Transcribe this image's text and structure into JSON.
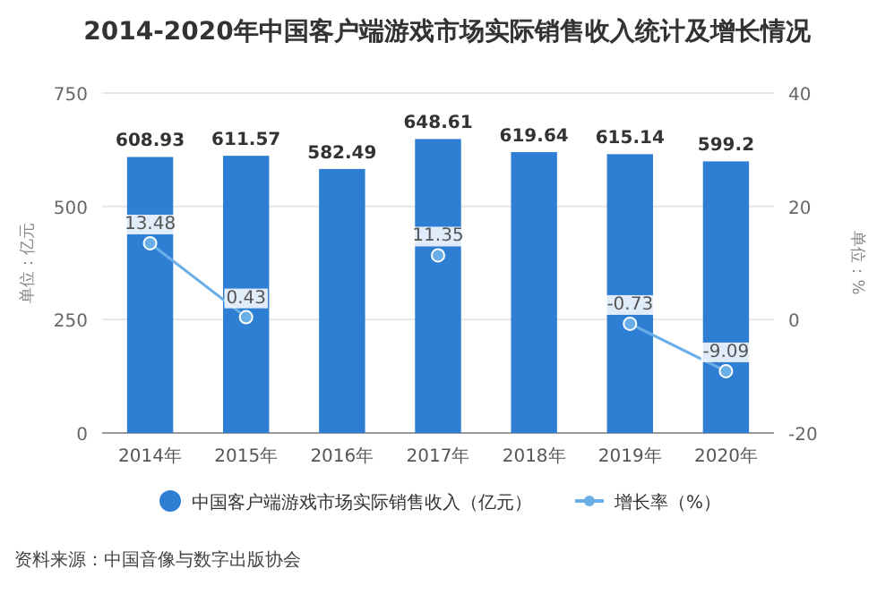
{
  "chart_data": {
    "type": "bar",
    "title": "2014-2020年中国客户端游戏市场实际销售收入统计及增长情况",
    "categories": [
      "2014年",
      "2015年",
      "2016年",
      "2017年",
      "2018年",
      "2019年",
      "2020年"
    ],
    "series": [
      {
        "name": "中国客户端游戏市场实际销售收入（亿元）",
        "color": "#2e7fd4",
        "values": [
          608.93,
          611.57,
          582.49,
          648.61,
          619.64,
          615.14,
          599.2
        ],
        "value_labels": [
          "608.93",
          "611.57",
          "582.49",
          "648.61",
          "619.64",
          "615.14",
          "599.2"
        ]
      },
      {
        "name": "增长率（%）",
        "type": "line",
        "axis": "y2",
        "color": "#6aaee8",
        "marker": "circle",
        "values": [
          13.48,
          0.43,
          null,
          11.35,
          null,
          -0.73,
          -9.09
        ],
        "value_labels": [
          "13.48",
          "0.43",
          null,
          "11.35",
          null,
          "-0.73",
          "-9.09"
        ]
      }
    ],
    "ylabel": "单位：亿元",
    "y2label": "单位：%",
    "ylim": [
      0,
      750
    ],
    "yticks": [
      0,
      250,
      500,
      750
    ],
    "y2lim": [
      -20,
      40
    ],
    "y2ticks": [
      -20,
      0,
      20,
      40
    ],
    "grid": "y",
    "legend": "bottom",
    "annotations": [
      "资料来源：中国音像与数字出版协会"
    ]
  }
}
